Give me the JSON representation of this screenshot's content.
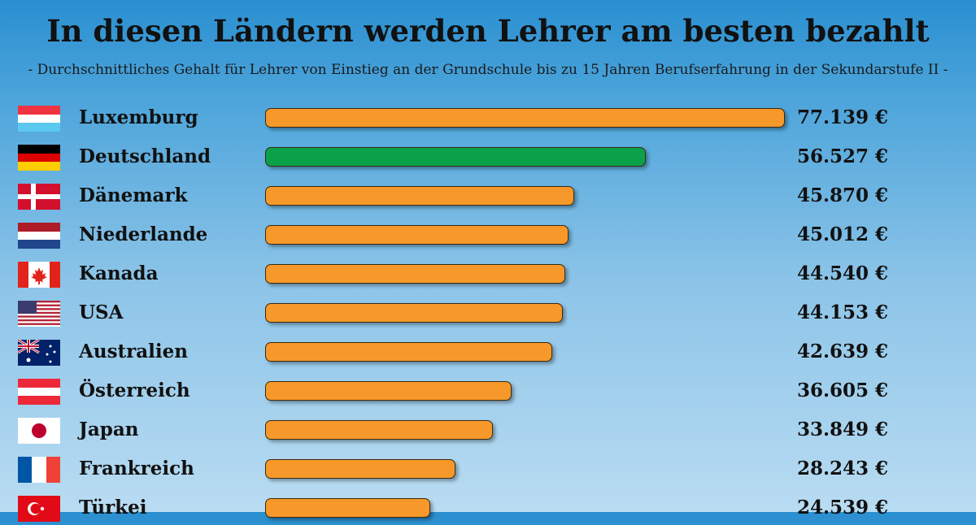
{
  "chart_data": {
    "type": "bar",
    "orientation": "horizontal",
    "title": "In diesen Ländern werden Lehrer am besten bezahlt",
    "subtitle": "- Durchschnittliches Gehalt für Lehrer von Einstieg an der Grundschule bis zu 15 Jahren Berufserfahrung in der Sekundarstufe II -",
    "xlim": [
      0,
      77139
    ],
    "categories": [
      "Luxemburg",
      "Deutschland",
      "Dänemark",
      "Niederlande",
      "Kanada",
      "USA",
      "Australien",
      "Österreich",
      "Japan",
      "Frankreich",
      "Türkei"
    ],
    "values": [
      77139,
      56527,
      45870,
      45012,
      44540,
      44153,
      42639,
      36605,
      33849,
      28243,
      24539
    ],
    "value_labels": [
      "77.139 €",
      "56.527 €",
      "45.870 €",
      "45.012 €",
      "44.540 €",
      "44.153 €",
      "42.639 €",
      "36.605 €",
      "33.849 €",
      "28.243 €",
      "24.539 €"
    ],
    "flags": [
      "flag-luxembourg-icon",
      "flag-germany-icon",
      "flag-denmark-icon",
      "flag-netherlands-icon",
      "flag-canada-icon",
      "flag-usa-icon",
      "flag-australia-icon",
      "flag-austria-icon",
      "flag-japan-icon",
      "flag-france-icon",
      "flag-turkey-icon"
    ],
    "bar_colors": [
      "#f7992a",
      "#0aa14a",
      "#f7992a",
      "#f7992a",
      "#f7992a",
      "#f7992a",
      "#f7992a",
      "#f7992a",
      "#f7992a",
      "#f7992a",
      "#f7992a"
    ],
    "highlight_color": "#0aa14a",
    "default_color": "#f7992a",
    "grid": false,
    "legend": "none"
  }
}
